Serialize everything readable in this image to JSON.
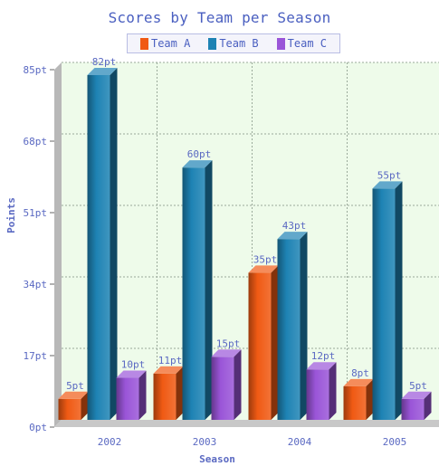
{
  "chart_data": {
    "type": "bar",
    "title": "Scores by Team per Season",
    "xlabel": "Season",
    "ylabel": "Points",
    "categories": [
      "2002",
      "2003",
      "2004",
      "2005"
    ],
    "series": [
      {
        "name": "Team A",
        "color": "#f05a14",
        "values": [
          5,
          11,
          35,
          8
        ],
        "labels": [
          "5pt",
          "11pt",
          "35pt",
          "8pt"
        ]
      },
      {
        "name": "Team B",
        "color": "#1e83b4",
        "values": [
          82,
          60,
          43,
          55
        ],
        "labels": [
          "82pt",
          "60pt",
          "43pt",
          "55pt"
        ]
      },
      {
        "name": "Team C",
        "color": "#9a55d8",
        "values": [
          10,
          15,
          12,
          5
        ],
        "labels": [
          "10pt",
          "15pt",
          "12pt",
          "5pt"
        ]
      }
    ],
    "yticks": [
      0,
      17,
      34,
      51,
      68,
      85
    ],
    "ytick_labels": [
      "0pt",
      "17pt",
      "34pt",
      "51pt",
      "68pt",
      "85pt"
    ],
    "ylim": [
      0,
      85
    ],
    "grid": true,
    "legend_position": "top-center",
    "plot_background": "#eefbea",
    "grid_color": "#9aaa9a"
  }
}
